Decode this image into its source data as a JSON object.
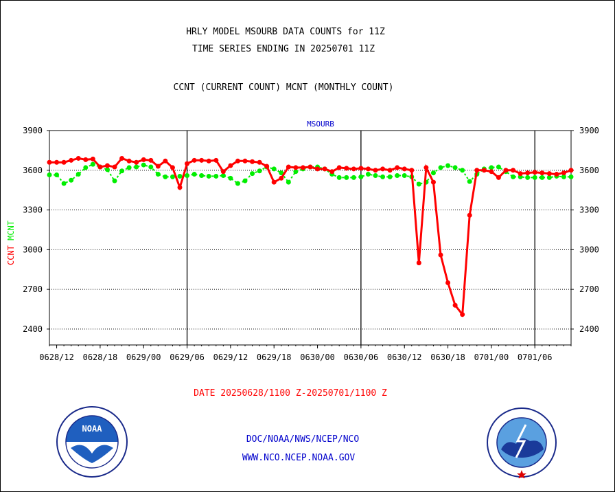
{
  "header": {
    "title1": "HRLY MODEL MSOURB DATA COUNTS for 11Z",
    "title2": "TIME SERIES ENDING IN 20250701 11Z",
    "subtitle": "CCNT (CURRENT COUNT) MCNT (MONTHLY COUNT)"
  },
  "footer": {
    "date_range": "DATE 20250628/1100 Z-20250701/1100 Z",
    "org_path": "DOC/NOAA/NWS/NCEP/NCO",
    "website": "WWW.NCO.NCEP.NOAA.GOV"
  },
  "logos": {
    "left": "NOAA",
    "right": "NATIONAL WEATHER SERVICE"
  },
  "colors": {
    "ccnt": "#ff0000",
    "mcnt": "#00ee00",
    "blue_text": "#0000cc",
    "date_text": "#ff0000"
  },
  "chart_data": {
    "type": "line",
    "title": "MSOURB",
    "ylabel_parts": [
      "CCNT",
      "MCNT"
    ],
    "ylim": [
      2280,
      3900
    ],
    "yticks": [
      3900,
      3600,
      3300,
      3000,
      2700,
      2400
    ],
    "xticks": [
      "0628/12",
      "0628/18",
      "0629/00",
      "0629/06",
      "0629/12",
      "0629/18",
      "0630/00",
      "0630/06",
      "0630/12",
      "0630/18",
      "0701/00",
      "0701/06"
    ],
    "x_hours": [
      12,
      18,
      24,
      30,
      36,
      42,
      48,
      54,
      60,
      66,
      72,
      78
    ],
    "xlim": [
      11,
      83
    ],
    "day_boundaries": [
      30,
      54,
      78
    ],
    "grid_y": true,
    "series": [
      {
        "name": "CCNT",
        "color": "#ff0000",
        "x": [
          11,
          12,
          13,
          14,
          15,
          16,
          17,
          18,
          19,
          20,
          21,
          22,
          23,
          24,
          25,
          26,
          27,
          28,
          29,
          30,
          31,
          32,
          33,
          34,
          35,
          36,
          37,
          38,
          39,
          40,
          41,
          42,
          43,
          44,
          45,
          46,
          47,
          48,
          49,
          50,
          51,
          52,
          53,
          54,
          55,
          56,
          57,
          58,
          59,
          60,
          61,
          62,
          63,
          64,
          65,
          66,
          67,
          68,
          69,
          70,
          71,
          72,
          73,
          74,
          75,
          76,
          77,
          78,
          79,
          80,
          81,
          82,
          83
        ],
        "values": [
          3660,
          3660,
          3660,
          3675,
          3690,
          3680,
          3685,
          3625,
          3635,
          3625,
          3690,
          3670,
          3660,
          3680,
          3675,
          3630,
          3670,
          3620,
          3470,
          3650,
          3675,
          3675,
          3670,
          3675,
          3590,
          3635,
          3670,
          3670,
          3665,
          3660,
          3630,
          3510,
          3540,
          3625,
          3620,
          3620,
          3625,
          3610,
          3610,
          3590,
          3620,
          3615,
          3610,
          3615,
          3610,
          3600,
          3610,
          3600,
          3620,
          3610,
          3600,
          2900,
          3620,
          3510,
          2960,
          2750,
          2580,
          2510,
          3260,
          3600,
          3600,
          3590,
          3545,
          3600,
          3600,
          3575,
          3580,
          3585,
          3580,
          3575,
          3570,
          3580,
          3600
        ]
      },
      {
        "name": "MCNT",
        "color": "#00ee00",
        "x": [
          11,
          12,
          13,
          14,
          15,
          16,
          17,
          18,
          19,
          20,
          21,
          22,
          23,
          24,
          25,
          26,
          27,
          28,
          29,
          30,
          31,
          32,
          33,
          34,
          35,
          36,
          37,
          38,
          39,
          40,
          41,
          42,
          43,
          44,
          45,
          46,
          47,
          48,
          49,
          50,
          51,
          52,
          53,
          54,
          55,
          56,
          57,
          58,
          59,
          60,
          61,
          62,
          63,
          64,
          65,
          66,
          67,
          68,
          69,
          70,
          71,
          72,
          73,
          74,
          75,
          76,
          77,
          78,
          79,
          80,
          81,
          82,
          83
        ],
        "values": [
          3565,
          3565,
          3500,
          3525,
          3570,
          3620,
          3645,
          3625,
          3605,
          3520,
          3595,
          3620,
          3625,
          3640,
          3625,
          3570,
          3550,
          3550,
          3555,
          3560,
          3570,
          3560,
          3555,
          3555,
          3560,
          3540,
          3500,
          3520,
          3575,
          3595,
          3625,
          3610,
          3580,
          3510,
          3590,
          3610,
          3625,
          3625,
          3610,
          3570,
          3545,
          3545,
          3545,
          3550,
          3570,
          3560,
          3550,
          3550,
          3560,
          3560,
          3550,
          3495,
          3510,
          3580,
          3620,
          3635,
          3620,
          3600,
          3515,
          3570,
          3610,
          3620,
          3625,
          3590,
          3550,
          3550,
          3545,
          3545,
          3545,
          3545,
          3555,
          3550,
          3550
        ]
      }
    ]
  }
}
